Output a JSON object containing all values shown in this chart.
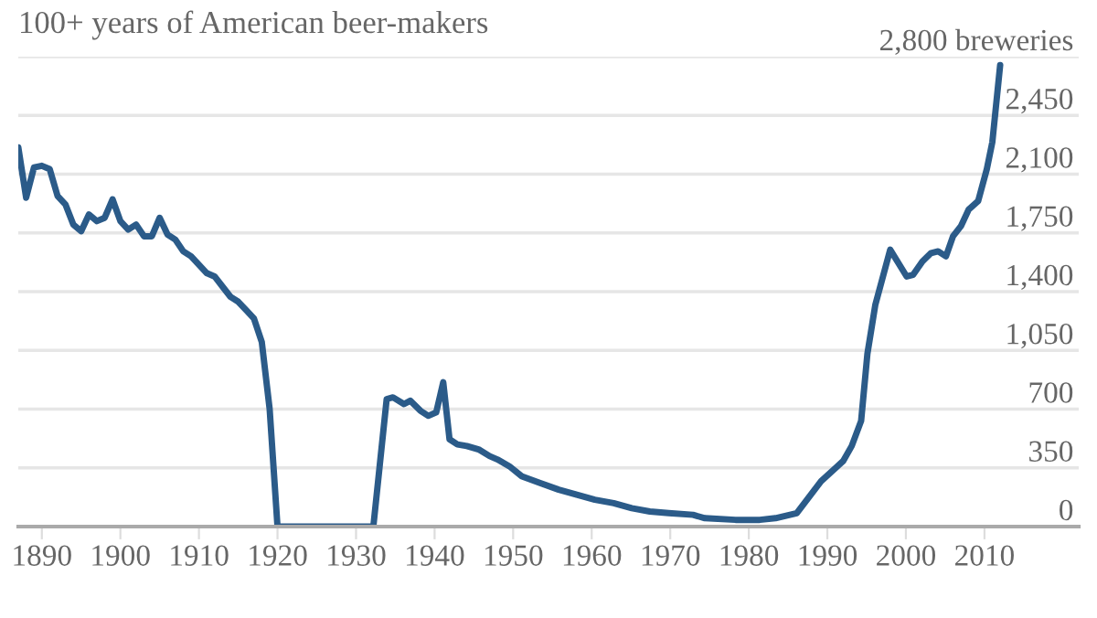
{
  "chart_data": {
    "type": "line",
    "title": "100+ years of American beer-makers",
    "x": [
      1887,
      1888,
      1889,
      1890,
      1891,
      1892,
      1893,
      1894,
      1895,
      1896,
      1897,
      1898,
      1899,
      1900,
      1901,
      1902,
      1903,
      1904,
      1905,
      1906,
      1907,
      1908,
      1909,
      1910,
      1911,
      1912,
      1913,
      1914,
      1915,
      1916,
      1917,
      1918,
      1919,
      1920,
      1932.2,
      1933.9,
      1934.7,
      1936.1,
      1936.9,
      1938.2,
      1939.2,
      1940.2,
      1941.1,
      1941.9,
      1942.9,
      1944.1,
      1945.6,
      1947,
      1948,
      1949.5,
      1951.1,
      1953.4,
      1955.8,
      1958.1,
      1960.4,
      1962.8,
      1965.1,
      1967.4,
      1969.8,
      1972.9,
      1974.4,
      1978.3,
      1981.4,
      1983.4,
      1986.1,
      1989.2,
      1992,
      1993.1,
      1994.3,
      1995.1,
      1996.1,
      1998,
      2000.1,
      2000.9,
      2002.1,
      2003.2,
      2004.1,
      2005.1,
      2006,
      2007,
      2008,
      2009.2,
      2010.3,
      2011,
      2012
    ],
    "series": [
      {
        "color": "#2b5b89",
        "values": [
          2260,
          1960,
          2140,
          2150,
          2130,
          1970,
          1920,
          1800,
          1760,
          1860,
          1820,
          1840,
          1950,
          1820,
          1770,
          1800,
          1730,
          1730,
          1840,
          1740,
          1710,
          1640,
          1610,
          1560,
          1510,
          1490,
          1430,
          1370,
          1340,
          1290,
          1240,
          1100,
          700,
          0,
          0,
          760,
          770,
          730,
          750,
          690,
          660,
          680,
          860,
          520,
          490,
          480,
          460,
          420,
          400,
          360,
          300,
          260,
          220,
          190,
          160,
          140,
          110,
          90,
          80,
          70,
          50,
          40,
          40,
          50,
          80,
          270,
          390,
          480,
          630,
          1030,
          1320,
          1650,
          1490,
          1500,
          1580,
          1630,
          1640,
          1610,
          1730,
          1790,
          1890,
          1940,
          2130,
          2290,
          2750
        ]
      }
    ],
    "xlim": [
      1887,
      2022
    ],
    "xticks": [
      1890,
      1900,
      1910,
      1920,
      1930,
      1940,
      1950,
      1960,
      1970,
      1980,
      1990,
      2000,
      2010
    ],
    "ylim": [
      0,
      2800
    ],
    "yticks": [
      0,
      350,
      700,
      {
        "value": 1050,
        "label": "1,050"
      },
      {
        "value": 1400,
        "label": "1,400"
      },
      {
        "value": 1750,
        "label": "1,750"
      },
      {
        "value": 2100,
        "label": "2,100"
      },
      {
        "value": 2450,
        "label": "2,450"
      },
      {
        "value": 2800,
        "label": "2,800 breweries"
      }
    ],
    "grid": "y",
    "legend": false
  }
}
